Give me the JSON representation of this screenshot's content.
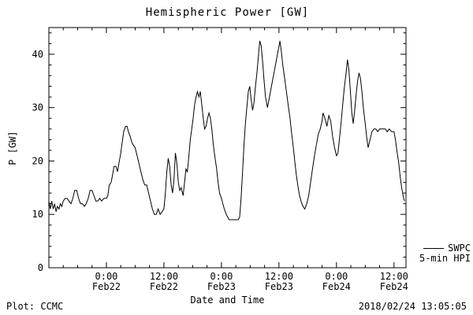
{
  "chart_data": {
    "type": "line",
    "title": "Hemispheric Power [GW]",
    "xlabel": "Date and Time",
    "ylabel": "P [GW]",
    "footer_left": "Plot: CCMC",
    "footer_right": "2018/02/24 13:05:05",
    "legend": {
      "source": "SWPC",
      "series_label": "5-min HPI"
    },
    "line_color": "#000000",
    "ylim": [
      0,
      45
    ],
    "y_ticks": [
      0,
      10,
      20,
      30,
      40
    ],
    "y_minor_step": 2,
    "x_hours_domain": [
      0,
      74.5
    ],
    "x_minor_step": 3,
    "x_ticks": [
      {
        "hour": 12,
        "time": "0:00",
        "date": "Feb22"
      },
      {
        "hour": 24,
        "time": "12:00",
        "date": "Feb22"
      },
      {
        "hour": 36,
        "time": "0:00",
        "date": "Feb23"
      },
      {
        "hour": 48,
        "time": "12:00",
        "date": "Feb23"
      },
      {
        "hour": 60,
        "time": "0:00",
        "date": "Feb24"
      },
      {
        "hour": 72,
        "time": "12:00",
        "date": "Feb24"
      }
    ],
    "series": [
      {
        "name": "SWPC 5-min HPI",
        "points": [
          [
            0,
            12.5
          ],
          [
            0.3,
            11
          ],
          [
            0.6,
            12.5
          ],
          [
            0.9,
            11
          ],
          [
            1.2,
            12
          ],
          [
            1.5,
            10.5
          ],
          [
            1.8,
            11.5
          ],
          [
            2.1,
            11
          ],
          [
            2.4,
            12
          ],
          [
            2.7,
            11.5
          ],
          [
            3,
            12.5
          ],
          [
            3.4,
            13
          ],
          [
            3.8,
            13
          ],
          [
            4.2,
            12.5
          ],
          [
            4.6,
            12
          ],
          [
            5,
            13
          ],
          [
            5.4,
            14.5
          ],
          [
            5.8,
            14.5
          ],
          [
            6.2,
            13
          ],
          [
            6.6,
            12
          ],
          [
            7,
            12
          ],
          [
            7.4,
            11.5
          ],
          [
            7.8,
            12
          ],
          [
            8.2,
            13
          ],
          [
            8.6,
            14.5
          ],
          [
            9,
            14.5
          ],
          [
            9.4,
            13.5
          ],
          [
            9.8,
            12.5
          ],
          [
            10.2,
            12.5
          ],
          [
            10.6,
            13
          ],
          [
            11,
            12.5
          ],
          [
            11.5,
            13
          ],
          [
            12,
            13
          ],
          [
            12.3,
            13.5
          ],
          [
            12.6,
            15.5
          ],
          [
            13,
            16
          ],
          [
            13.3,
            17.5
          ],
          [
            13.6,
            19
          ],
          [
            14,
            19
          ],
          [
            14.3,
            18
          ],
          [
            14.6,
            19.5
          ],
          [
            15,
            21.5
          ],
          [
            15.3,
            23.5
          ],
          [
            15.6,
            25.5
          ],
          [
            16,
            26.5
          ],
          [
            16.3,
            26.5
          ],
          [
            16.6,
            25.5
          ],
          [
            17,
            24.5
          ],
          [
            17.3,
            23.5
          ],
          [
            17.6,
            23
          ],
          [
            18,
            22.5
          ],
          [
            18.4,
            21
          ],
          [
            18.8,
            19.5
          ],
          [
            19.2,
            18
          ],
          [
            19.6,
            16.5
          ],
          [
            20,
            15.5
          ],
          [
            20.4,
            15.5
          ],
          [
            20.8,
            14
          ],
          [
            21.2,
            12.5
          ],
          [
            21.6,
            11
          ],
          [
            22,
            10
          ],
          [
            22.4,
            10
          ],
          [
            22.8,
            11
          ],
          [
            23.2,
            10
          ],
          [
            23.6,
            10.5
          ],
          [
            24,
            11
          ],
          [
            24.3,
            14
          ],
          [
            24.6,
            18
          ],
          [
            24.9,
            20.5
          ],
          [
            25.2,
            19
          ],
          [
            25.5,
            15.5
          ],
          [
            25.8,
            14
          ],
          [
            26.1,
            16.5
          ],
          [
            26.4,
            21.5
          ],
          [
            26.7,
            19.5
          ],
          [
            27,
            16
          ],
          [
            27.3,
            14.5
          ],
          [
            27.6,
            15
          ],
          [
            28,
            13.5
          ],
          [
            28.3,
            16
          ],
          [
            28.6,
            18.5
          ],
          [
            28.9,
            18
          ],
          [
            29.2,
            21
          ],
          [
            29.5,
            24
          ],
          [
            29.8,
            26
          ],
          [
            30.1,
            28
          ],
          [
            30.4,
            30.5
          ],
          [
            30.7,
            32
          ],
          [
            31,
            33
          ],
          [
            31.3,
            32
          ],
          [
            31.6,
            33
          ],
          [
            31.9,
            30.5
          ],
          [
            32.2,
            28
          ],
          [
            32.5,
            26
          ],
          [
            32.8,
            26.5
          ],
          [
            33.1,
            28
          ],
          [
            33.4,
            29
          ],
          [
            33.7,
            28
          ],
          [
            34,
            26
          ],
          [
            34.3,
            23
          ],
          [
            34.6,
            21
          ],
          [
            35,
            18.5
          ],
          [
            35.3,
            16
          ],
          [
            35.6,
            14
          ],
          [
            36,
            13
          ],
          [
            36.3,
            12
          ],
          [
            36.6,
            11
          ],
          [
            37,
            10
          ],
          [
            37.3,
            9.5
          ],
          [
            37.6,
            9
          ],
          [
            38,
            9
          ],
          [
            38.5,
            9
          ],
          [
            39,
            9
          ],
          [
            39.5,
            9
          ],
          [
            39.8,
            9.5
          ],
          [
            40.1,
            13
          ],
          [
            40.4,
            18
          ],
          [
            40.7,
            23
          ],
          [
            41,
            27
          ],
          [
            41.3,
            30
          ],
          [
            41.6,
            33
          ],
          [
            41.9,
            34
          ],
          [
            42.2,
            31.5
          ],
          [
            42.5,
            29.5
          ],
          [
            42.8,
            31
          ],
          [
            43.1,
            34
          ],
          [
            43.4,
            36.5
          ],
          [
            43.7,
            39.5
          ],
          [
            44,
            42.5
          ],
          [
            44.3,
            41.5
          ],
          [
            44.6,
            38.5
          ],
          [
            44.9,
            35
          ],
          [
            45.2,
            32
          ],
          [
            45.6,
            30
          ],
          [
            46,
            31.9
          ],
          [
            46.5,
            34.3
          ],
          [
            47,
            36.7
          ],
          [
            47.5,
            39.1
          ],
          [
            48,
            41.5
          ],
          [
            48.2,
            42.5
          ],
          [
            48.5,
            40.5
          ],
          [
            48.8,
            38
          ],
          [
            49.1,
            36
          ],
          [
            49.4,
            34
          ],
          [
            49.7,
            32
          ],
          [
            50,
            30
          ],
          [
            50.3,
            28
          ],
          [
            50.6,
            25.5
          ],
          [
            51,
            22.5
          ],
          [
            51.3,
            20
          ],
          [
            51.6,
            17.5
          ],
          [
            52,
            15
          ],
          [
            52.3,
            13.5
          ],
          [
            52.6,
            12.5
          ],
          [
            53,
            11.5
          ],
          [
            53.4,
            11
          ],
          [
            53.8,
            12
          ],
          [
            54.2,
            13.5
          ],
          [
            54.6,
            16
          ],
          [
            55,
            18.5
          ],
          [
            55.4,
            21
          ],
          [
            55.8,
            23
          ],
          [
            56.2,
            25
          ],
          [
            56.6,
            26
          ],
          [
            57,
            27.5
          ],
          [
            57.2,
            29
          ],
          [
            57.6,
            28
          ],
          [
            58,
            26.5
          ],
          [
            58.4,
            28.5
          ],
          [
            58.8,
            27.5
          ],
          [
            59.2,
            24.5
          ],
          [
            59.6,
            22.5
          ],
          [
            60,
            21
          ],
          [
            60.3,
            21.5
          ],
          [
            60.6,
            24
          ],
          [
            61,
            27.5
          ],
          [
            61.3,
            30.5
          ],
          [
            61.6,
            33.5
          ],
          [
            62,
            36.5
          ],
          [
            62.3,
            39
          ],
          [
            62.6,
            37
          ],
          [
            62.9,
            33
          ],
          [
            63.2,
            29
          ],
          [
            63.5,
            27
          ],
          [
            63.8,
            29.5
          ],
          [
            64.1,
            32.5
          ],
          [
            64.4,
            35
          ],
          [
            64.7,
            36.5
          ],
          [
            65,
            35.5
          ],
          [
            65.3,
            33
          ],
          [
            65.6,
            30
          ],
          [
            66,
            27
          ],
          [
            66.3,
            24.5
          ],
          [
            66.6,
            22.5
          ],
          [
            67,
            24
          ],
          [
            67.4,
            25.5
          ],
          [
            67.8,
            26
          ],
          [
            68.2,
            26
          ],
          [
            68.6,
            25.5
          ],
          [
            69,
            26
          ],
          [
            69.4,
            26
          ],
          [
            69.8,
            26
          ],
          [
            70.2,
            26
          ],
          [
            70.6,
            25.5
          ],
          [
            71,
            26
          ],
          [
            71.5,
            25.5
          ],
          [
            72,
            25.5
          ],
          [
            72.3,
            24
          ],
          [
            72.6,
            22
          ],
          [
            73,
            19.5
          ],
          [
            73.3,
            17
          ],
          [
            73.6,
            15
          ],
          [
            74,
            13
          ],
          [
            74.2,
            12.5
          ]
        ]
      }
    ]
  }
}
